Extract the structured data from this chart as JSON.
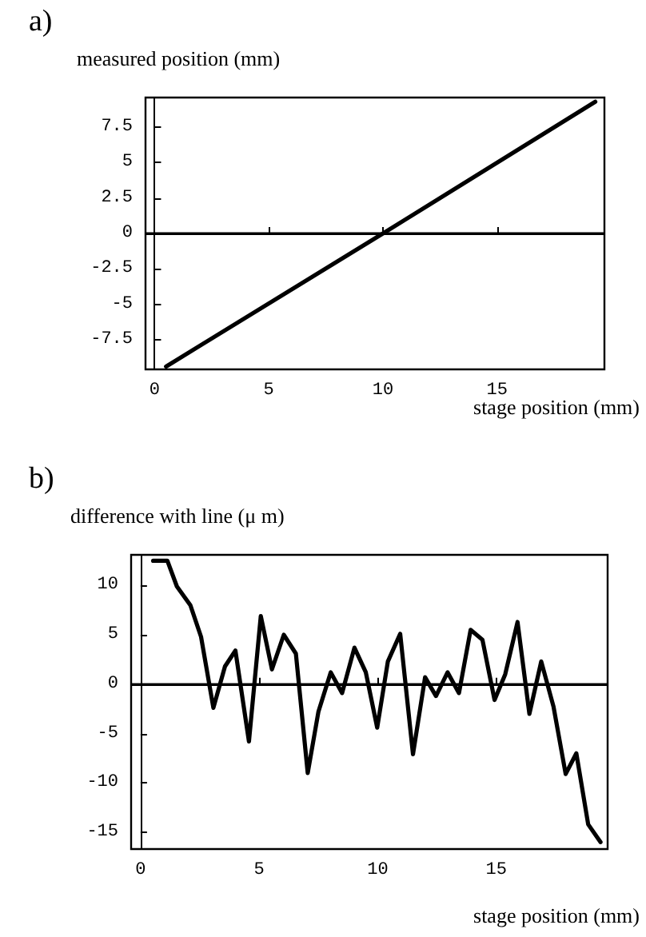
{
  "chart_data": [
    {
      "type": "line",
      "title": "a)",
      "ylabel": "measured position (mm)",
      "xlabel": "stage position (mm)",
      "color": "#000000",
      "marker": "none",
      "line_style": "solid",
      "x": [
        0.5,
        10,
        19.3
      ],
      "values": [
        -9.4,
        0,
        9.3
      ],
      "xlim": [
        -0.4,
        19.7
      ],
      "xticks": [
        0,
        5,
        10,
        15
      ],
      "ylim": [
        -9.6,
        9.6
      ],
      "yticks": [
        -7.5,
        -5,
        -2.5,
        0,
        2.5,
        5,
        7.5
      ],
      "ref_lines": [
        {
          "axis": "y",
          "value": 0,
          "label": null,
          "color": "#000000"
        }
      ]
    },
    {
      "type": "line",
      "title": "b)",
      "ylabel": "difference with line (μ m)",
      "xlabel": "stage position (mm)",
      "color": "#000000",
      "marker": "none",
      "line_style": "solid",
      "x": [
        0.53,
        1.13,
        1.53,
        2.1,
        2.55,
        3.07,
        3.56,
        4.0,
        4.57,
        5.07,
        5.54,
        6.04,
        6.55,
        7.05,
        7.5,
        8.02,
        8.5,
        9.02,
        9.5,
        9.98,
        10.43,
        10.95,
        11.49,
        12.0,
        12.46,
        12.95,
        13.43,
        13.92,
        14.42,
        14.93,
        15.38,
        15.9,
        16.4,
        16.9,
        17.42,
        17.93,
        18.38,
        18.88,
        19.4
      ],
      "values": [
        12.5,
        12.5,
        9.9,
        8.0,
        4.8,
        -2.4,
        1.8,
        3.4,
        -5.8,
        6.9,
        1.5,
        5.0,
        3.1,
        -9.0,
        -2.8,
        1.2,
        -0.9,
        3.7,
        1.2,
        -4.4,
        2.3,
        5.1,
        -7.1,
        0.7,
        -1.2,
        1.2,
        -0.9,
        5.5,
        4.5,
        -1.6,
        1.0,
        6.3,
        -3.0,
        2.3,
        -2.3,
        -9.1,
        -7.0,
        -14.2,
        -16.0
      ],
      "xlim": [
        -0.4,
        19.7
      ],
      "xticks": [
        0,
        5,
        10,
        15
      ],
      "ylim": [
        -16.7,
        13.1
      ],
      "yticks": [
        -15,
        -10,
        -5,
        0,
        5,
        10
      ],
      "ref_lines": [
        {
          "axis": "y",
          "value": 0,
          "label": null,
          "color": "#000000"
        }
      ]
    }
  ]
}
